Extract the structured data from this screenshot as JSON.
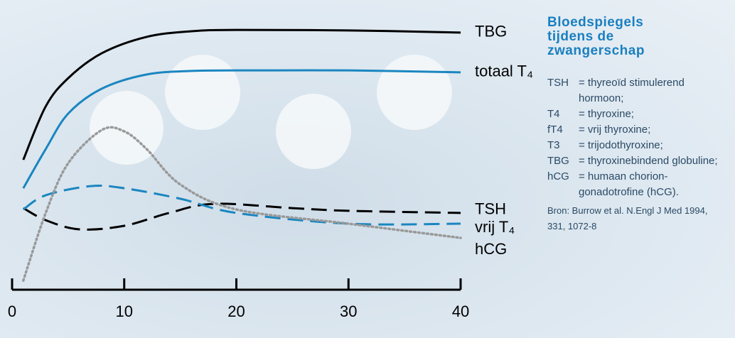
{
  "chart_data": {
    "type": "line",
    "title": "Bloedspiegels tijdens de zwangerschap",
    "xlim": [
      0,
      40
    ],
    "xticks": [
      0,
      10,
      20,
      30,
      40
    ],
    "ylim": [
      0,
      100
    ],
    "series": [
      {
        "name": "TBG",
        "color": "#000000",
        "style": "solid",
        "x": [
          1,
          3,
          5,
          8,
          12,
          16,
          20,
          30,
          40
        ],
        "values": [
          48.4,
          68.3,
          78.8,
          88.1,
          94.2,
          96.3,
          96.8,
          96.6,
          95.8
        ]
      },
      {
        "name": "totaal T₄",
        "color": "#1a86c0",
        "style": "solid",
        "x": [
          1,
          3,
          5,
          8,
          12,
          16,
          20,
          30,
          40
        ],
        "values": [
          37.8,
          52.4,
          65.6,
          74.9,
          80.2,
          81.5,
          81.7,
          81.7,
          81.0
        ]
      },
      {
        "name": "TSH",
        "color": "#000000",
        "style": "dashed",
        "x": [
          1,
          3,
          6,
          10,
          14,
          18,
          25,
          30,
          40
        ],
        "values": [
          30.4,
          25.9,
          22.5,
          23.8,
          28.6,
          32.0,
          30.4,
          29.4,
          28.6
        ]
      },
      {
        "name": "vrij T₄",
        "color": "#1a86c0",
        "style": "dashed",
        "x": [
          1,
          3,
          7,
          10,
          15,
          20,
          30,
          40
        ],
        "values": [
          29.9,
          35.2,
          38.6,
          37.8,
          33.9,
          28.6,
          24.6,
          24.6
        ]
      },
      {
        "name": "hCG",
        "color": "#999999",
        "style": "dotted",
        "x": [
          1,
          3,
          5,
          8,
          10,
          12,
          15,
          20,
          30,
          40
        ],
        "values": [
          3.4,
          28.6,
          47.1,
          59.5,
          59.0,
          52.4,
          39.2,
          29.9,
          24.6,
          19.3
        ]
      }
    ],
    "definitions": [
      {
        "abbr": "TSH",
        "text": "= thyreoïd stimulerend hormoon;"
      },
      {
        "abbr": "T4",
        "text": "= thyroxine;"
      },
      {
        "abbr": "fT4",
        "text": "= vrij thyroxine;"
      },
      {
        "abbr": "T3",
        "text": "= trijodothyroxine;"
      },
      {
        "abbr": "TBG",
        "text": "= thyroxinebindend globuline;"
      },
      {
        "abbr": "hCG",
        "text": "= humaan chorion-gonadotrofine (hCG)."
      }
    ],
    "source": "Bron: Burrow et al. N.Engl J Med 1994, 331, 1072-8"
  }
}
